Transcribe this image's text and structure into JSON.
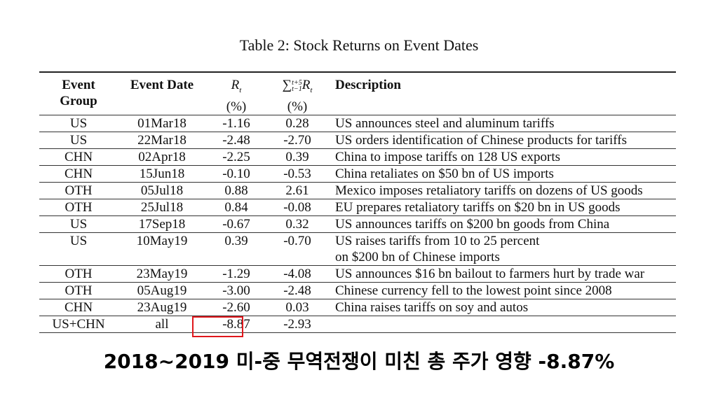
{
  "title": "Table 2: Stock Returns on Event Dates",
  "headers": {
    "group_line1": "Event",
    "group_line2": "Group",
    "date": "Event Date",
    "rt_symbol": "R",
    "rt_sub": "t",
    "rt_unit": "(%)",
    "sum_symbol": "∑",
    "sum_sup": "t+5",
    "sum_sub": "t−1",
    "sum_r": "R",
    "sum_r_sub": "t",
    "sum_unit": "(%)",
    "description": "Description"
  },
  "rows": [
    {
      "group": "US",
      "date": "01Mar18",
      "rt": "-1.16",
      "sum": "0.28",
      "desc1": "US announces steel and aluminum tariffs",
      "desc2": ""
    },
    {
      "group": "US",
      "date": "22Mar18",
      "rt": "-2.48",
      "sum": "-2.70",
      "desc1": "US orders identification of Chinese products for tariffs",
      "desc2": ""
    },
    {
      "group": "CHN",
      "date": "02Apr18",
      "rt": "-2.25",
      "sum": "0.39",
      "desc1": "China to impose tariffs on 128 US exports",
      "desc2": ""
    },
    {
      "group": "CHN",
      "date": "15Jun18",
      "rt": "-0.10",
      "sum": "-0.53",
      "desc1": "China retaliates on $50 bn of US imports",
      "desc2": ""
    },
    {
      "group": "OTH",
      "date": "05Jul18",
      "rt": "0.88",
      "sum": "2.61",
      "desc1": "Mexico imposes retaliatory tariffs on dozens of US goods",
      "desc2": ""
    },
    {
      "group": "OTH",
      "date": "25Jul18",
      "rt": "0.84",
      "sum": "-0.08",
      "desc1": "EU prepares retaliatory tariffs on $20 bn in US goods",
      "desc2": ""
    },
    {
      "group": "US",
      "date": "17Sep18",
      "rt": "-0.67",
      "sum": "0.32",
      "desc1": "US announces tariffs on $200 bn goods from China",
      "desc2": ""
    },
    {
      "group": "US",
      "date": "10May19",
      "rt": "0.39",
      "sum": "-0.70",
      "desc1": "US raises tariffs from 10 to 25 percent",
      "desc2": "on $200 bn of Chinese imports"
    },
    {
      "group": "OTH",
      "date": "23May19",
      "rt": "-1.29",
      "sum": "-4.08",
      "desc1": "US announces $16 bn bailout to farmers hurt by trade war",
      "desc2": ""
    },
    {
      "group": "OTH",
      "date": "05Aug19",
      "rt": "-3.00",
      "sum": "-2.48",
      "desc1": "Chinese currency fell to the lowest point since 2008",
      "desc2": ""
    },
    {
      "group": "CHN",
      "date": "23Aug19",
      "rt": "-2.60",
      "sum": "0.03",
      "desc1": "China raises tariffs on soy and autos",
      "desc2": ""
    },
    {
      "group": "US+CHN",
      "date": "all",
      "rt": "-8.87",
      "sum": "-2.93",
      "desc1": "",
      "desc2": ""
    }
  ],
  "caption": "2018~2019 미-중 무역전쟁이 미친 총 주가 영향 -8.87%",
  "colors": {
    "highlight": "#e0171c",
    "text": "#111111"
  }
}
